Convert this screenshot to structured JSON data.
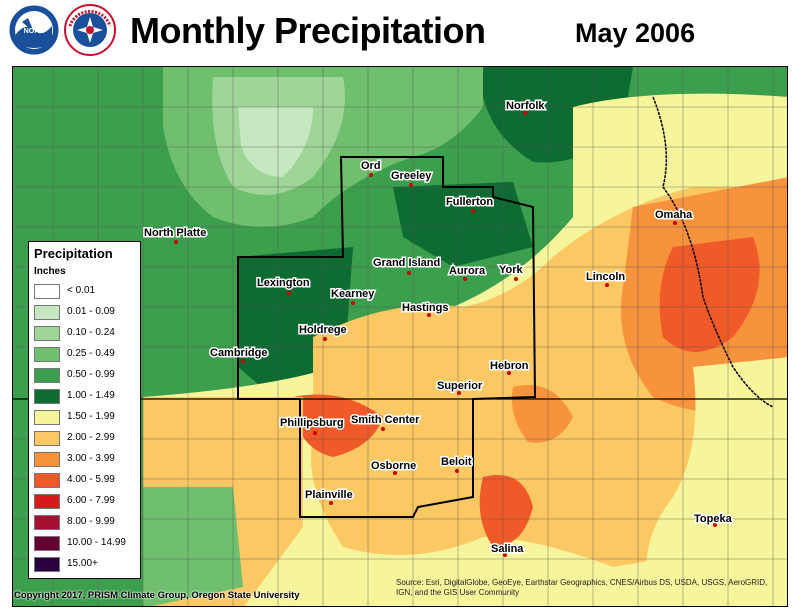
{
  "header": {
    "title": "Monthly Precipitation",
    "period": "May 2006"
  },
  "logos": [
    {
      "name": "noaa-logo",
      "color": "#1a4f9c"
    },
    {
      "name": "nws-logo",
      "color": "#c8102e"
    }
  ],
  "legend": {
    "title": "Precipitation",
    "units": "Inches",
    "items": [
      {
        "label": "< 0.01",
        "color": "#ffffff"
      },
      {
        "label": "0.01 - 0.09",
        "color": "#c6e8c0"
      },
      {
        "label": "0.10 - 0.24",
        "color": "#9fd596"
      },
      {
        "label": "0.25 - 0.49",
        "color": "#6fbf6e"
      },
      {
        "label": "0.50 - 0.99",
        "color": "#3c9f4d"
      },
      {
        "label": "1.00 - 1.49",
        "color": "#0e6b32"
      },
      {
        "label": "1.50 - 1.99",
        "color": "#f7f59c"
      },
      {
        "label": "2.00 - 2.99",
        "color": "#fbc863"
      },
      {
        "label": "3.00 - 3.99",
        "color": "#f7923d"
      },
      {
        "label": "4.00 - 5.99",
        "color": "#ef5a28"
      },
      {
        "label": "6.00 - 7.99",
        "color": "#d7191c"
      },
      {
        "label": "8.00 - 9.99",
        "color": "#a50f32"
      },
      {
        "label": "10.00 - 14.99",
        "color": "#660033"
      },
      {
        "label": "15.00+",
        "color": "#2b0040"
      }
    ]
  },
  "cities": [
    {
      "name": "Ord"
    },
    {
      "name": "Greeley"
    },
    {
      "name": "Norfolk"
    },
    {
      "name": "Fullerton"
    },
    {
      "name": "North Platte"
    },
    {
      "name": "Omaha"
    },
    {
      "name": "Grand Island"
    },
    {
      "name": "Aurora"
    },
    {
      "name": "York"
    },
    {
      "name": "Lexington"
    },
    {
      "name": "Lincoln"
    },
    {
      "name": "Kearney"
    },
    {
      "name": "Hastings"
    },
    {
      "name": "Holdrege"
    },
    {
      "name": "Cambridge"
    },
    {
      "name": "Hebron"
    },
    {
      "name": "Superior"
    },
    {
      "name": "Phillipsburg"
    },
    {
      "name": "Smith Center"
    },
    {
      "name": "Osborne"
    },
    {
      "name": "Beloit"
    },
    {
      "name": "Plainville"
    },
    {
      "name": "Topeka"
    },
    {
      "name": "Salina"
    }
  ],
  "footer": {
    "copyright": "Copyright 2017, PRISM Climate Group, Oregon State University",
    "attribution": "Source: Esri, DigitalGlobe, GeoEye, Earthstar Geographics, CNES/Airbus DS, USDA, USGS, AeroGRID, IGN, and the GIS User Community"
  }
}
